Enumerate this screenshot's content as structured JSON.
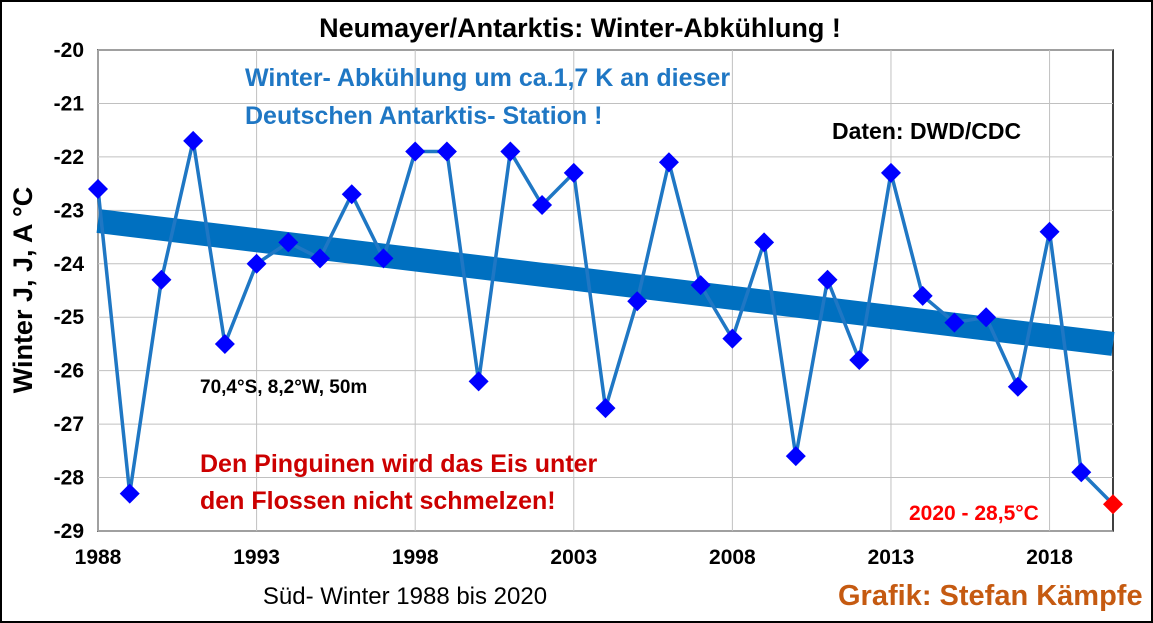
{
  "chart_data": {
    "type": "line",
    "title": "Neumayer/Antarktis:  Winter-Abkühlung  !",
    "xlabel": "Süd- Winter 1988 bis 2020",
    "ylabel": "Winter J, J, A °C",
    "xlim": [
      1988,
      2020
    ],
    "ylim": [
      -29,
      -20
    ],
    "x_ticks": [
      1988,
      1993,
      1998,
      2003,
      2008,
      2013,
      2018
    ],
    "y_ticks": [
      -20,
      -21,
      -22,
      -23,
      -24,
      -25,
      -26,
      -27,
      -28,
      -29
    ],
    "grid": true,
    "series": [
      {
        "kind": "data",
        "color": "#1f77c4",
        "marker_color": "#0000ff",
        "x": [
          1988,
          1989,
          1990,
          1991,
          1992,
          1993,
          1994,
          1995,
          1996,
          1997,
          1998,
          1999,
          2000,
          2001,
          2002,
          2003,
          2004,
          2005,
          2006,
          2007,
          2008,
          2009,
          2010,
          2011,
          2012,
          2013,
          2014,
          2015,
          2016,
          2017,
          2018,
          2019,
          2020
        ],
        "y": [
          -22.6,
          -28.3,
          -24.3,
          -21.7,
          -25.5,
          -24.0,
          -23.6,
          -23.9,
          -22.7,
          -23.9,
          -21.9,
          -21.9,
          -26.2,
          -21.9,
          -22.9,
          -22.3,
          -26.7,
          -24.7,
          -22.1,
          -24.4,
          -25.4,
          -23.6,
          -27.6,
          -24.3,
          -25.8,
          -22.3,
          -24.6,
          -25.1,
          -25.0,
          -26.3,
          -23.4,
          -27.9,
          -28.5
        ]
      },
      {
        "kind": "trend",
        "color": "#0070c0",
        "x": [
          1988,
          2020
        ],
        "y": [
          -23.2,
          -25.5
        ]
      }
    ],
    "highlight": {
      "x": 2020,
      "y": -28.5,
      "color": "#ff0000"
    }
  },
  "annotations": {
    "blue_line1": "Winter- Abkühlung um ca.1,7 K an dieser",
    "blue_line2": "Deutschen Antarktis- Station !",
    "source": "Daten: DWD/CDC",
    "location": "70,4°S, 8,2°W, 50m",
    "red_line1": "Den Pinguinen wird das Eis unter",
    "red_line2": "den Flossen nicht schmelzen!",
    "last_value": "2020 - 28,5°C",
    "credit": "Grafik: Stefan Kämpfe"
  },
  "colors": {
    "blue_text": "#1f77c4",
    "red_text": "#cc0000",
    "last_value_text": "#ff0000",
    "credit_text": "#c55a11",
    "grid": "#c0c0c0"
  }
}
